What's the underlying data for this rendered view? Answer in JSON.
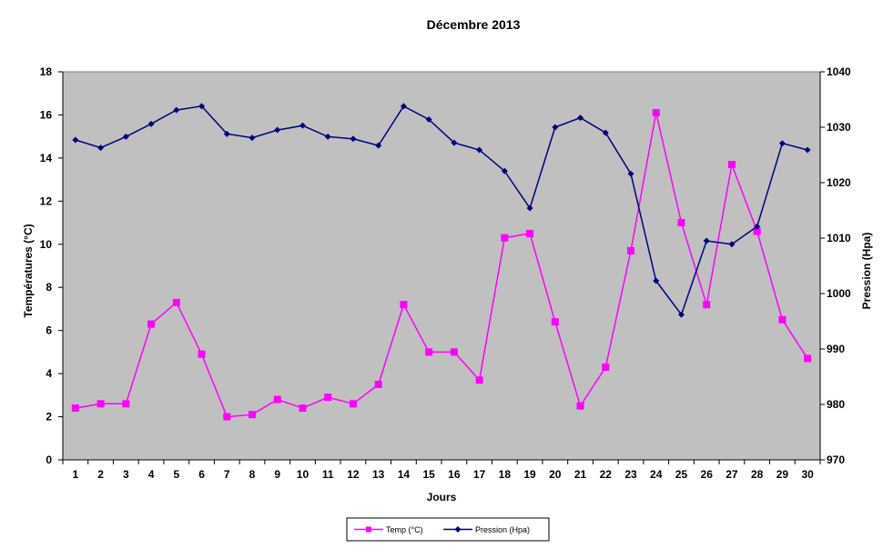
{
  "chart_data": {
    "type": "line",
    "title": "Décembre 2013",
    "xlabel": "Jours",
    "ylabel_left": "Températures (°C)",
    "ylabel_right": "Pression (Hpa)",
    "x": [
      1,
      2,
      3,
      4,
      5,
      6,
      7,
      8,
      9,
      10,
      11,
      12,
      13,
      14,
      15,
      16,
      17,
      18,
      19,
      20,
      21,
      22,
      23,
      24,
      25,
      26,
      27,
      28,
      29,
      30
    ],
    "ylim_left": [
      0,
      18
    ],
    "yticks_left": [
      0,
      2,
      4,
      6,
      8,
      10,
      12,
      14,
      16,
      18
    ],
    "ylim_right": [
      970,
      1040
    ],
    "yticks_right": [
      970,
      980,
      990,
      1000,
      1010,
      1020,
      1030,
      1040
    ],
    "grid": false,
    "plot_background": "#c0c0c0",
    "legend_position": "bottom-center",
    "series": [
      {
        "name": "Temp (°C)",
        "axis": "left",
        "color": "#ff00ff",
        "marker": "square",
        "values": [
          2.4,
          2.6,
          2.6,
          6.3,
          7.3,
          4.9,
          2.0,
          2.1,
          2.8,
          2.4,
          2.9,
          2.6,
          3.5,
          7.2,
          5.0,
          5.0,
          3.7,
          10.3,
          10.5,
          6.4,
          2.5,
          4.3,
          9.7,
          16.1,
          11.0,
          7.2,
          13.7,
          10.6,
          6.5,
          4.7
        ]
      },
      {
        "name": "Pression (Hpa)",
        "axis": "right",
        "color": "#000080",
        "marker": "diamond",
        "values": [
          1027.7,
          1026.3,
          1028.3,
          1030.6,
          1033.1,
          1033.8,
          1028.8,
          1028.1,
          1029.5,
          1030.3,
          1028.3,
          1027.9,
          1026.7,
          1033.8,
          1031.4,
          1027.2,
          1025.9,
          1022.1,
          1015.4,
          1030.0,
          1031.7,
          1029.0,
          1021.6,
          1002.3,
          996.2,
          1009.5,
          1008.9,
          1012.1,
          1027.1,
          1025.9
        ]
      }
    ]
  }
}
